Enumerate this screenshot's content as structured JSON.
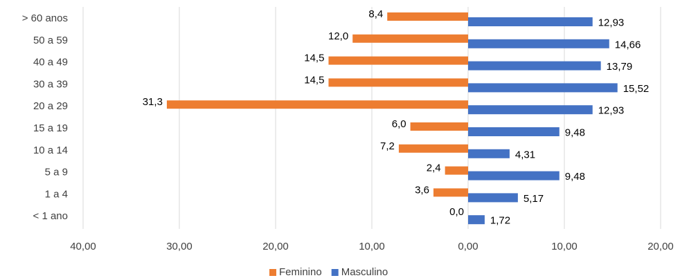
{
  "chart_data": {
    "type": "bar",
    "orientation": "horizontal",
    "categories": [
      "> 60 anos",
      "50 a 59",
      "40 a 49",
      "30 a 39",
      "20 a 29",
      "15 a 19",
      "10 a 14",
      "5 a 9",
      "1 a 4",
      "< 1 ano"
    ],
    "series": [
      {
        "name": "Feminino",
        "color": "#ed7d31",
        "values": [
          -8.4,
          -12.0,
          -14.5,
          -14.5,
          -31.3,
          -6.0,
          -7.2,
          -2.4,
          -3.6,
          0.0
        ],
        "value_labels": [
          "8,4",
          "12,0",
          "14,5",
          "14,5",
          "31,3",
          "6,0",
          "7,2",
          "2,4",
          "3,6",
          "0,0"
        ]
      },
      {
        "name": "Masculino",
        "color": "#4472c4",
        "values": [
          12.93,
          14.66,
          13.79,
          15.52,
          12.93,
          9.48,
          4.31,
          9.48,
          5.17,
          1.72
        ],
        "value_labels": [
          "12,93",
          "14,66",
          "13,79",
          "15,52",
          "12,93",
          "9,48",
          "4,31",
          "9,48",
          "5,17",
          "1,72"
        ]
      }
    ],
    "xlim": [
      -40,
      20
    ],
    "xticks": [
      {
        "value": -40,
        "label": "40,00"
      },
      {
        "value": -30,
        "label": "30,00"
      },
      {
        "value": -20,
        "label": "20,00"
      },
      {
        "value": -10,
        "label": "10,00"
      },
      {
        "value": 0,
        "label": "0,00"
      },
      {
        "value": 10,
        "label": "10,00"
      },
      {
        "value": 20,
        "label": "20,00"
      }
    ],
    "grid": true,
    "legend": "bottom"
  }
}
